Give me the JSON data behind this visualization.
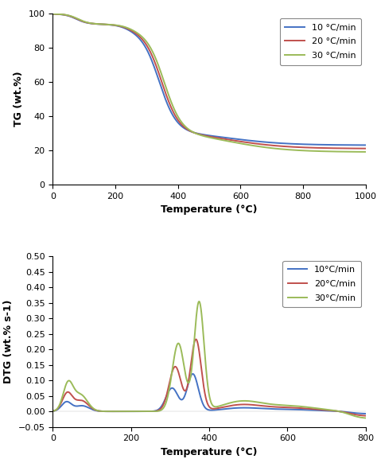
{
  "tg": {
    "xlabel": "Temperature (°C)",
    "ylabel": "TG (wt.%)",
    "xlim": [
      0,
      1000
    ],
    "ylim": [
      0,
      100
    ],
    "xticks": [
      0,
      200,
      400,
      600,
      800,
      1000
    ],
    "yticks": [
      0,
      20,
      40,
      60,
      80,
      100
    ],
    "legend_labels": [
      "10 °C/min",
      "20 °C/min",
      "30 °C/min"
    ],
    "colors": [
      "#4472c4",
      "#c0504d",
      "#9bbb59"
    ]
  },
  "dtg": {
    "xlabel": "Temperature (°C)",
    "ylabel": "DTG (wt.% s-1)",
    "xlim": [
      0,
      800
    ],
    "ylim": [
      -0.05,
      0.5
    ],
    "xticks": [
      0,
      200,
      400,
      600,
      800
    ],
    "yticks": [
      -0.05,
      0,
      0.05,
      0.1,
      0.15,
      0.2,
      0.25,
      0.3,
      0.35,
      0.4,
      0.45,
      0.5
    ],
    "legend_labels": [
      "10°C/min",
      "20°C/min",
      "30°C/min"
    ],
    "colors": [
      "#4472c4",
      "#c0504d",
      "#9bbb59"
    ]
  },
  "background_color": "#ffffff"
}
